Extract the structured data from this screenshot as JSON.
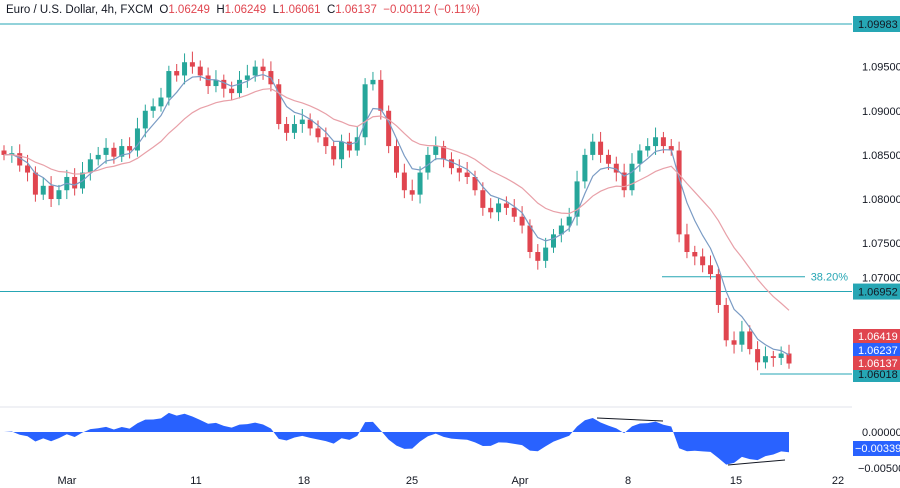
{
  "header": {
    "symbol": "Euro / U.S. Dollar, 4h, FXCM",
    "open_label": "O",
    "open": "1.06249",
    "high_label": "H",
    "high": "1.06249",
    "low_label": "L",
    "low": "1.06061",
    "close_label": "C",
    "close": "1.06137",
    "change": "−0.00112 (−0.11%)"
  },
  "chart_data": {
    "type": "candlestick",
    "interval": "4h",
    "closes": [
      1.085,
      1.0852,
      1.0838,
      1.083,
      1.0805,
      1.0815,
      1.08,
      1.081,
      1.0825,
      1.0812,
      1.083,
      1.0845,
      1.085,
      1.0858,
      1.0848,
      1.086,
      1.0855,
      1.088,
      1.09,
      1.0905,
      1.0915,
      1.0945,
      1.094,
      1.0955,
      1.095,
      1.094,
      1.0928,
      1.0935,
      1.0925,
      1.092,
      1.0935,
      1.094,
      1.095,
      1.0945,
      1.093,
      1.0885,
      1.0875,
      1.0885,
      1.089,
      1.088,
      1.087,
      1.086,
      1.0845,
      1.0865,
      1.0855,
      1.087,
      1.093,
      1.0935,
      1.09,
      1.086,
      1.083,
      1.081,
      1.0805,
      1.083,
      1.085,
      1.086,
      1.0845,
      1.0835,
      1.083,
      1.0825,
      1.081,
      1.079,
      1.0785,
      1.0795,
      1.079,
      1.078,
      1.077,
      1.074,
      1.073,
      1.0745,
      1.076,
      1.077,
      1.078,
      1.082,
      1.085,
      1.0865,
      1.085,
      1.084,
      1.083,
      1.081,
      1.084,
      1.0855,
      1.086,
      1.087,
      1.086,
      1.0855,
      1.076,
      1.074,
      1.0735,
      1.0725,
      1.0715,
      1.068,
      1.064,
      1.0635,
      1.065,
      1.063,
      1.0615,
      1.0622,
      1.062,
      1.0625,
      1.06137
    ],
    "x_ticks": [
      "Mar",
      "11",
      "18",
      "25",
      "Apr",
      "8",
      "15",
      "22"
    ],
    "y_ticks": [
      "1.09500",
      "1.09000",
      "1.08500",
      "1.08000",
      "1.07500",
      "1.07000"
    ],
    "y_range": [
      1.0565,
      1.1025
    ],
    "horizontal_levels": [
      {
        "price": 1.09983,
        "label": "1.09983"
      },
      {
        "price": 1.06952,
        "label": "1.06952"
      },
      {
        "price": 1.06018,
        "label": "1.06018"
      }
    ],
    "fib_level": {
      "price": 1.0712,
      "label": "38.20%"
    },
    "price_tags": [
      {
        "label": "1.06419",
        "color": "#e0454f"
      },
      {
        "label": "1.06237",
        "color": "#2962ff"
      },
      {
        "label": "1.06137",
        "color": "#e0454f"
      }
    ],
    "moving_averages": [
      {
        "color": "#7a9bc4"
      },
      {
        "color": "#e8a0a8"
      }
    ],
    "oscillator": {
      "ticks": [
        "0.00000",
        "−0.00500"
      ],
      "current": "−0.00339",
      "range": [
        -0.0065,
        0.004
      ],
      "color": "#2962ff"
    },
    "colors": {
      "up": "#26a69a",
      "down": "#e0454f",
      "level": "#26a6b4"
    }
  }
}
